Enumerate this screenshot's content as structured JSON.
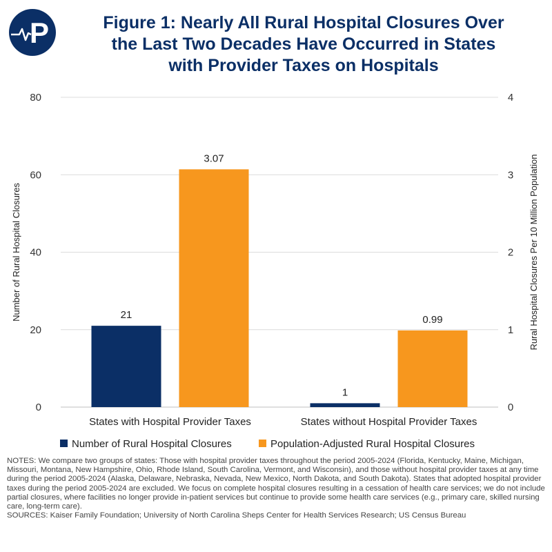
{
  "chart_data": {
    "type": "bar",
    "title": "Figure 1: Nearly All Rural Hospital Closures Over the Last Two Decades Have Occurred in States with Provider Taxes on Hospitals",
    "title_lines": [
      "Figure 1: Nearly All Rural Hospital Closures Over",
      "the Last Two Decades Have Occurred in States",
      "with Provider Taxes on Hospitals"
    ],
    "categories": [
      "States with Hospital Provider Taxes",
      "States without Hospital Provider Taxes"
    ],
    "series": [
      {
        "name": "Number of Rural Hospital Closures",
        "axis": "left",
        "color": "#0b2f66",
        "values": [
          21,
          1
        ],
        "labels": [
          "21",
          "1"
        ]
      },
      {
        "name": "Population-Adjusted Rural Hospital Closures",
        "axis": "right",
        "color": "#f7971e",
        "values": [
          3.07,
          0.99
        ],
        "labels": [
          "3.07",
          "0.99"
        ]
      }
    ],
    "ylabel": "Number of Rural Hospital Closures",
    "ylabel_right": "Rural Hospital Closures Per 10 Million Population",
    "ylim": [
      0,
      80
    ],
    "ylim_right": [
      0,
      4
    ],
    "yticks": [
      0,
      20,
      40,
      60,
      80
    ],
    "yticks_right": [
      0,
      1,
      2,
      3,
      4
    ],
    "grid": true,
    "legend": "bottom"
  },
  "notes": "NOTES: We compare two groups of states: Those with hospital provider taxes throughout the period 2005-2024 (Florida, Kentucky, Maine, Michigan, Missouri, Montana, New Hampshire, Ohio, Rhode Island, South Carolina, Vermont, and Wisconsin), and those without hospital provider taxes at any time during the period 2005-2024 (Alaska, Delaware, Nebraska, Nevada, New Mexico, North Dakota, and South Dakota). States that adopted hospital provider taxes during the period 2005-2024 are excluded. We focus on complete hospital closures resulting in a cessation of health care services; we do not include partial closures, where facilities no longer provide in-patient services but continue to provide some health care services (e.g., primary care, skilled nursing care, long-term care).",
  "sources": "SOURCES: Kaiser Family Foundation; University of North Carolina Sheps Center for Health Services Research; US Census Bureau",
  "logo": {
    "icon": "heartbeat-p-logo-icon",
    "letter": "P"
  }
}
